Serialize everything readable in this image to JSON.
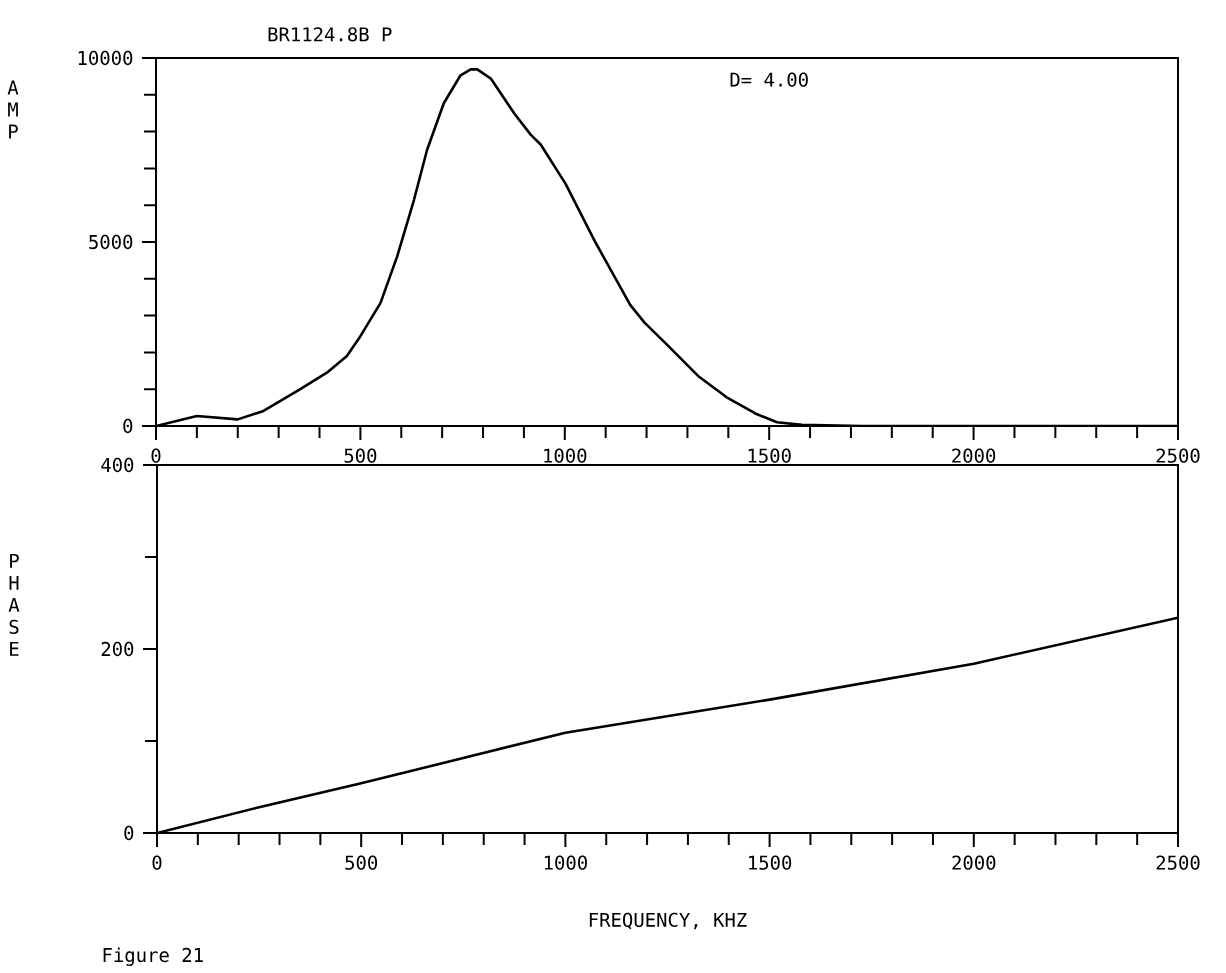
{
  "chart_data": [
    {
      "type": "line",
      "title": "BR1124.8B P",
      "ylabel": "AMP",
      "annotations": [
        "D= 4.00"
      ],
      "color": "#000000",
      "x": [
        0,
        100,
        200,
        263,
        353,
        418,
        467,
        500,
        549,
        590,
        631,
        663,
        704,
        745,
        770,
        786,
        819,
        876,
        917,
        941,
        1002,
        1073,
        1160,
        1195,
        1248,
        1326,
        1396,
        1466,
        1519,
        1580,
        1728,
        2000,
        2500
      ],
      "values": [
        0,
        270,
        180,
        410,
        1000,
        1450,
        1900,
        2440,
        3340,
        4610,
        6140,
        7500,
        8770,
        9530,
        9690,
        9690,
        9440,
        8500,
        7910,
        7650,
        6580,
        5030,
        3290,
        2810,
        2230,
        1360,
        780,
        340,
        100,
        30,
        0,
        0,
        0
      ],
      "xlim": [
        0,
        2500
      ],
      "ylim": [
        0,
        10000
      ],
      "xticks": [
        0,
        {
          "value": 100,
          "label": null
        },
        {
          "value": 200,
          "label": null
        },
        {
          "value": 300,
          "label": null
        },
        {
          "value": 400,
          "label": null
        },
        500,
        {
          "value": 600,
          "label": null
        },
        {
          "value": 700,
          "label": null
        },
        {
          "value": 800,
          "label": null
        },
        {
          "value": 900,
          "label": null
        },
        1000,
        {
          "value": 1100,
          "label": null
        },
        {
          "value": 1200,
          "label": null
        },
        {
          "value": 1300,
          "label": null
        },
        {
          "value": 1400,
          "label": null
        },
        1500,
        {
          "value": 1600,
          "label": null
        },
        {
          "value": 1700,
          "label": null
        },
        {
          "value": 1800,
          "label": null
        },
        {
          "value": 1900,
          "label": null
        },
        2000,
        {
          "value": 2100,
          "label": null
        },
        {
          "value": 2200,
          "label": null
        },
        {
          "value": 2300,
          "label": null
        },
        {
          "value": 2400,
          "label": null
        },
        2500
      ],
      "yticks": [
        0,
        {
          "value": 1000,
          "label": null
        },
        {
          "value": 2000,
          "label": null
        },
        {
          "value": 3000,
          "label": null
        },
        {
          "value": 4000,
          "label": null
        },
        5000,
        {
          "value": 6000,
          "label": null
        },
        {
          "value": 7000,
          "label": null
        },
        {
          "value": 8000,
          "label": null
        },
        {
          "value": 9000,
          "label": null
        },
        10000
      ]
    },
    {
      "type": "line",
      "ylabel": "PHASE",
      "xlabel": "FREQUENCY, KHZ",
      "annotations": [
        "Figure 21"
      ],
      "color": "#000000",
      "x": [
        0,
        250,
        500,
        1000,
        1500,
        2000,
        2500
      ],
      "values": [
        0,
        28,
        54,
        109,
        145,
        184,
        234
      ],
      "xlim": [
        0,
        2500
      ],
      "ylim": [
        0,
        400
      ],
      "xticks": [
        0,
        {
          "value": 100,
          "label": null
        },
        {
          "value": 200,
          "label": null
        },
        {
          "value": 300,
          "label": null
        },
        {
          "value": 400,
          "label": null
        },
        500,
        {
          "value": 600,
          "label": null
        },
        {
          "value": 700,
          "label": null
        },
        {
          "value": 800,
          "label": null
        },
        {
          "value": 900,
          "label": null
        },
        1000,
        {
          "value": 1100,
          "label": null
        },
        {
          "value": 1200,
          "label": null
        },
        {
          "value": 1300,
          "label": null
        },
        {
          "value": 1400,
          "label": null
        },
        1500,
        {
          "value": 1600,
          "label": null
        },
        {
          "value": 1700,
          "label": null
        },
        {
          "value": 1800,
          "label": null
        },
        {
          "value": 1900,
          "label": null
        },
        2000,
        {
          "value": 2100,
          "label": null
        },
        {
          "value": 2200,
          "label": null
        },
        {
          "value": 2300,
          "label": null
        },
        {
          "value": 2400,
          "label": null
        },
        2500
      ],
      "yticks": [
        0,
        {
          "value": 100,
          "label": null
        },
        200,
        {
          "value": 300,
          "label": null
        },
        400
      ]
    }
  ]
}
